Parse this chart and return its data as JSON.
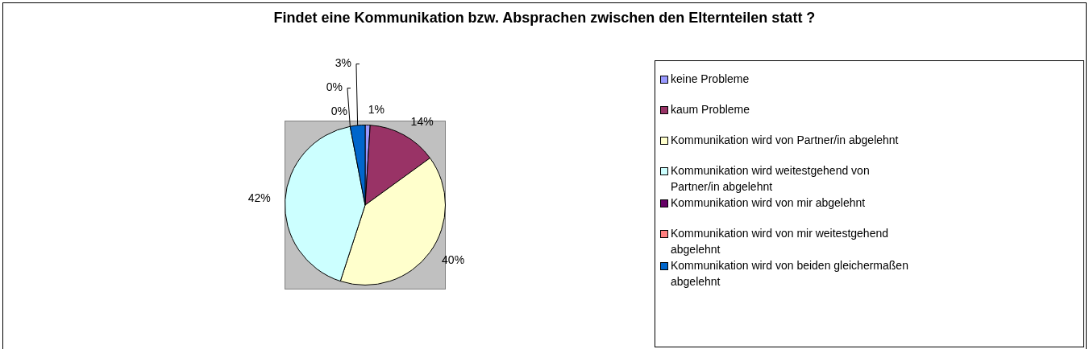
{
  "chart_data": {
    "type": "pie",
    "title": "Findet eine Kommunikation bzw. Absprachen zwischen den Elternteilen statt ?",
    "categories": [
      "keine Probleme",
      "kaum Probleme",
      "Kommunikation wird von Partner/in abgelehnt",
      "Kommunikation wird weitestgehend von Partner/in abgelehnt",
      "Kommunikation wird von mir abgelehnt",
      "Kommunikation wird von mir weitestgehend abgelehnt",
      "Kommunikation wird von beiden gleichermaßen abgelehnt"
    ],
    "values": [
      1,
      14,
      40,
      42,
      0,
      0,
      3
    ],
    "value_labels": [
      "1%",
      "14%",
      "40%",
      "42%",
      "0%",
      "0%",
      "3%"
    ],
    "colors": [
      "#9999ff",
      "#993366",
      "#ffffcc",
      "#ccffff",
      "#660066",
      "#ff8080",
      "#0066cc"
    ],
    "legend": "right"
  }
}
